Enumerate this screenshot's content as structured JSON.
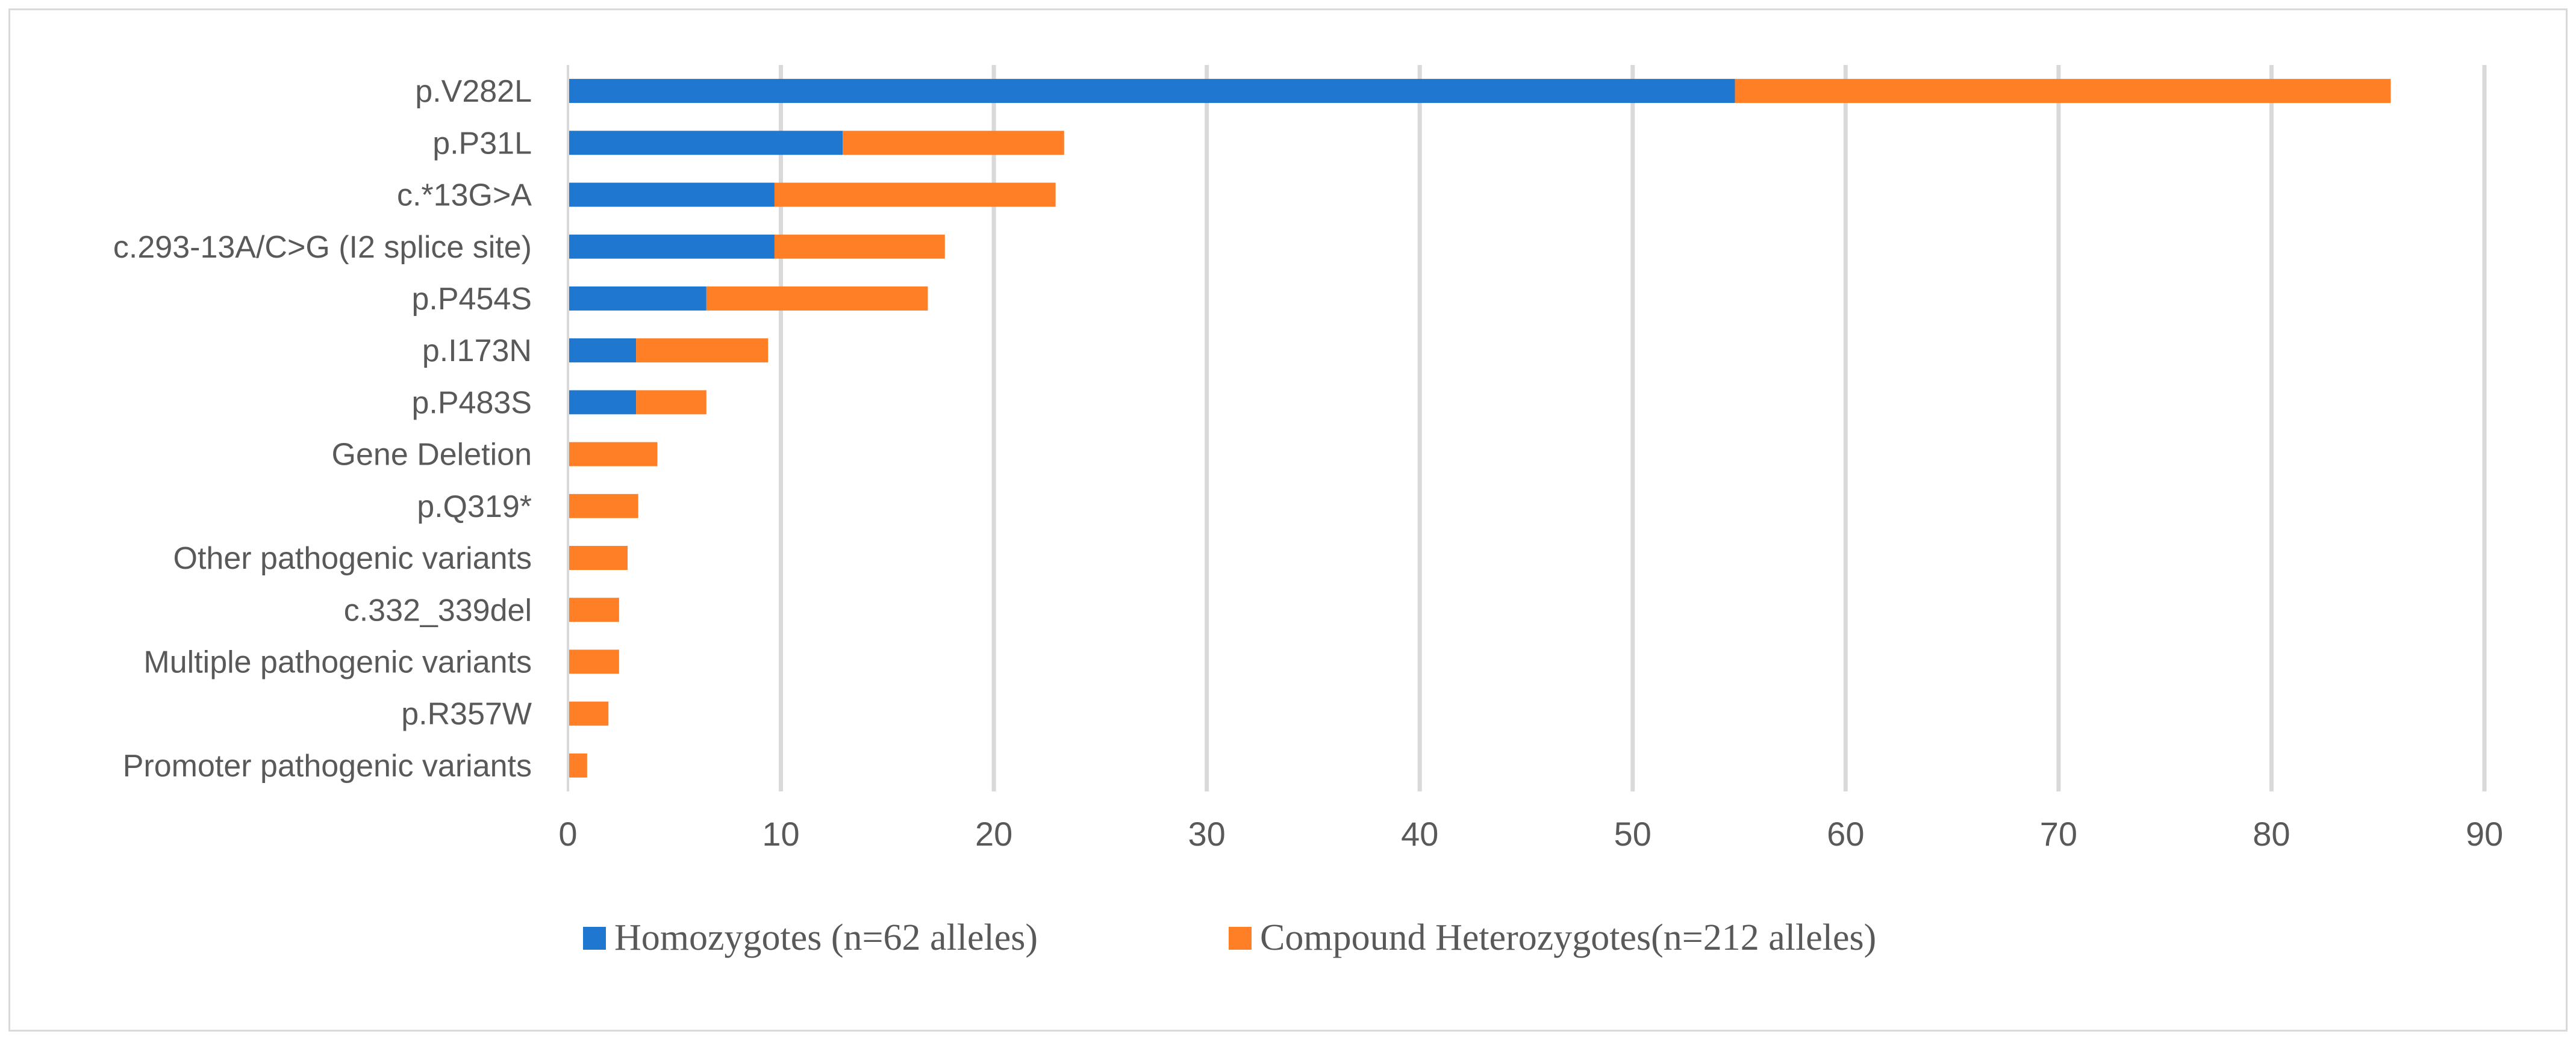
{
  "chart_data": {
    "type": "bar",
    "orientation": "horizontal",
    "stacked": true,
    "categories": [
      "p.V282L",
      "p.P31L",
      "c.*13G>A",
      "c.293-13A/C>G (I2 splice site)",
      "p.P454S",
      "p.I173N",
      "p.P483S",
      "Gene Deletion",
      "p.Q319*",
      "Other pathogenic variants",
      "c.332_339del",
      "Multiple pathogenic variants",
      "p.R357W",
      "Promoter pathogenic variants"
    ],
    "series": [
      {
        "name": "Homozygotes (n=62 alleles)",
        "color": "#1f77d0",
        "values": [
          54.8,
          12.9,
          9.7,
          9.7,
          6.5,
          3.2,
          3.2,
          0,
          0,
          0,
          0,
          0,
          0,
          0
        ]
      },
      {
        "name": "Compound Heterozygotes(n=212 alleles)",
        "color": "#ff7f27",
        "values": [
          30.8,
          10.4,
          13.2,
          8.0,
          10.4,
          6.2,
          3.3,
          4.2,
          3.3,
          2.8,
          2.4,
          2.4,
          1.9,
          0.9
        ]
      }
    ],
    "xlim": [
      0,
      90
    ],
    "xticks": [
      "0",
      "10",
      "20",
      "30",
      "40",
      "50",
      "60",
      "70",
      "80",
      "90"
    ],
    "grid": "vertical",
    "legend_position": "bottom"
  }
}
